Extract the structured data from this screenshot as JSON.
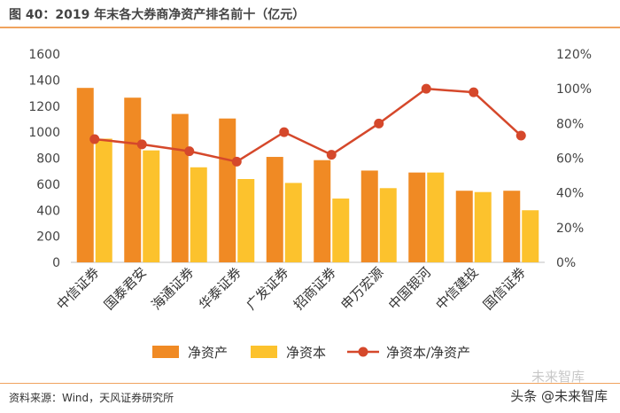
{
  "header": {
    "title": "图 40：2019 年末各大券商净资产排名前十（亿元）"
  },
  "footer": {
    "source": "资料来源：Wind，天风证券研究所",
    "watermark": "头条 @未来智库",
    "watermark_faint": "未来智库"
  },
  "colors": {
    "net_assets": "#f08a24",
    "net_capital": "#fcc22d",
    "ratio": "#d5482b",
    "rule": "#f0a35e"
  },
  "chart_data": {
    "type": "bar",
    "categories": [
      "中信证券",
      "国泰君安",
      "海通证券",
      "华泰证券",
      "广发证券",
      "招商证券",
      "申万宏源",
      "中国银河",
      "中信建投",
      "国信证券"
    ],
    "series": [
      {
        "name": "净资产",
        "type": "bar",
        "axis": "left",
        "values": [
          1340,
          1265,
          1140,
          1105,
          810,
          785,
          705,
          690,
          550,
          550
        ]
      },
      {
        "name": "净资本",
        "type": "bar",
        "axis": "left",
        "values": [
          950,
          860,
          730,
          640,
          610,
          490,
          570,
          690,
          540,
          400
        ]
      },
      {
        "name": "净资本/净资产",
        "type": "line",
        "axis": "right",
        "values": [
          71,
          68,
          64,
          58,
          75,
          62,
          80,
          100,
          98,
          73
        ]
      }
    ],
    "y_left": {
      "min": 0,
      "max": 1600,
      "ticks": [
        0,
        200,
        400,
        600,
        800,
        1000,
        1200,
        1400,
        1600
      ]
    },
    "y_right": {
      "min": 0,
      "max": 120,
      "ticks": [
        "0%",
        "20%",
        "40%",
        "60%",
        "80%",
        "100%",
        "120%"
      ]
    },
    "grid": false,
    "legend_position": "bottom"
  }
}
